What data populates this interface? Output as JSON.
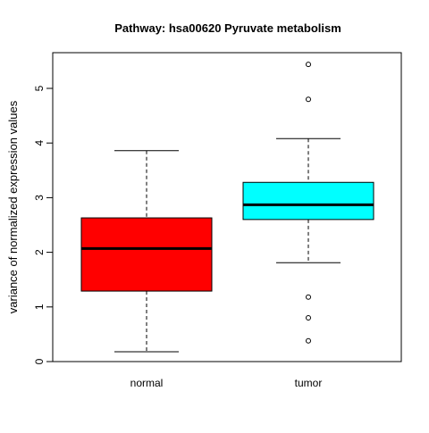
{
  "chart_data": {
    "type": "box",
    "title": "Pathway:  hsa00620 Pyruvate metabolism",
    "ylabel": "variance of normalized expression values",
    "ylim": [
      0,
      5.65
    ],
    "yticks": [
      0,
      1,
      2,
      3,
      4,
      5
    ],
    "categories": [
      "normal",
      "tumor"
    ],
    "grid": false,
    "series": [
      {
        "category": "normal",
        "whisker_low": 0.18,
        "q1": 1.29,
        "median": 2.07,
        "q3": 2.63,
        "whisker_high": 3.86,
        "outliers": [],
        "color": "#ff0000"
      },
      {
        "category": "tumor",
        "whisker_low": 1.81,
        "q1": 2.6,
        "median": 2.87,
        "q3": 3.28,
        "whisker_high": 4.08,
        "outliers": [
          0.38,
          0.8,
          1.18,
          4.8,
          5.44
        ],
        "color": "#00ffff"
      }
    ]
  }
}
